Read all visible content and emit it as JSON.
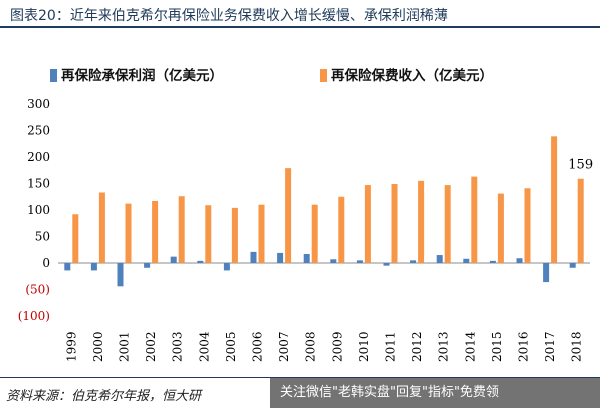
{
  "header": {
    "title": "图表20：近年来伯克希尔再保险业务保费收入增长缓慢、承保利润稀薄"
  },
  "chart_data": {
    "type": "bar",
    "categories": [
      "1999",
      "2000",
      "2001",
      "2002",
      "2003",
      "2004",
      "2005",
      "2006",
      "2007",
      "2008",
      "2009",
      "2010",
      "2011",
      "2012",
      "2013",
      "2014",
      "2015",
      "2016",
      "2017",
      "2018"
    ],
    "series": [
      {
        "name": "再保险承保利润（亿美元）",
        "color": "#4f81bd",
        "values": [
          -14,
          -14,
          -44,
          -9,
          12,
          4,
          -14,
          21,
          19,
          17,
          7,
          5,
          -5,
          5,
          15,
          8,
          4,
          9,
          -36,
          -9
        ]
      },
      {
        "name": "再保险保费收入（亿美元）",
        "color": "#f79646",
        "values": [
          92,
          133,
          112,
          117,
          126,
          109,
          104,
          110,
          179,
          110,
          125,
          147,
          149,
          155,
          147,
          163,
          131,
          141,
          239,
          159
        ]
      }
    ],
    "y_ticks": [
      "300",
      "250",
      "200",
      "150",
      "100",
      "50",
      "0",
      "(50)",
      "(100)"
    ],
    "y_tick_values": [
      300,
      250,
      200,
      150,
      100,
      50,
      0,
      -50,
      -100
    ],
    "ylim": [
      -100,
      300
    ],
    "data_labels": [
      {
        "series": 1,
        "category": "2018",
        "text": "159"
      }
    ],
    "legend": "top",
    "grid": false
  },
  "footer": {
    "source": "资料来源：伯克希尔年报，恒大研",
    "watermark": "关注微信\"老韩实盘\"回复\"指标\"免费领"
  }
}
